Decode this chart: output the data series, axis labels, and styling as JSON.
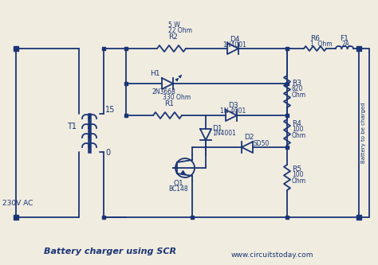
{
  "title": "Battery charger using SCR",
  "subtitle": "www.circuitstoday.com",
  "bg_color": "#f0ece0",
  "line_color": "#1a3575",
  "text_color": "#1a3575",
  "components": {
    "R2_label": "R2",
    "R2_sub1": "22 Ohm",
    "R2_sub2": "5 W",
    "R1_label": "R1",
    "R1_sub": "330 Ohm",
    "R6_label": "R6",
    "R6_sub": "1  Ohm",
    "R3_label": "R3",
    "R3_sub1": "820",
    "R3_sub2": "Ohm",
    "R4_label": "R4",
    "R4_sub1": "100",
    "R4_sub2": "Ohm",
    "R5_label": "R5",
    "R5_sub1": "100",
    "R5_sub2": "Ohm",
    "D4_label": "D4",
    "D4_sub": "1N4001",
    "D3_label": "D3",
    "D3_sub": "1N 4001",
    "D1_label": "D1",
    "D1_sub": "1N4001",
    "D2_label": "D2",
    "D2_sub": "SD50",
    "H1_label": "H1",
    "H1_sub": "2N3668",
    "Q1_label": "Q1",
    "Q1_sub": "BC148",
    "F1_label": "F1",
    "F1_sub": "2A",
    "T1_label": "T1",
    "AC_label": "230V AC",
    "battery_label": "Battery to be charged",
    "tap15": "15",
    "tap0": "0"
  },
  "lw": 1.3
}
